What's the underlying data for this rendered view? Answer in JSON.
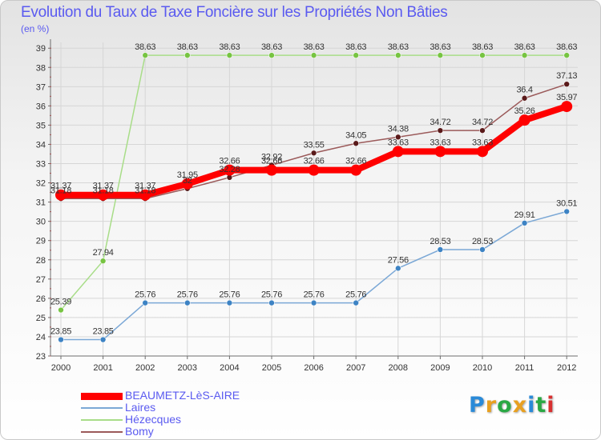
{
  "header": {
    "title": "Evolution du Taux de Taxe Foncière sur les Propriétés Non Bâties",
    "subtitle": "(en %)"
  },
  "logo": {
    "text": "Proxiti",
    "letters": [
      "P",
      "r",
      "o",
      "x",
      "i",
      "t",
      "i"
    ],
    "colors": [
      "#2a8ad8",
      "#e8a020",
      "#2aa844",
      "#e8a020",
      "#2a8ad8",
      "#2aa844",
      "#d83030"
    ]
  },
  "colors": {
    "text": "#5a5af0",
    "grid": "#d6d6d6",
    "axis": "#6e6e6e",
    "tick_mark": "#e04040"
  },
  "chart_data": {
    "type": "line",
    "x": [
      "2000",
      "2001",
      "2002",
      "2003",
      "2004",
      "2005",
      "2006",
      "2007",
      "2008",
      "2009",
      "2010",
      "2011",
      "2012"
    ],
    "yticks": [
      23,
      24,
      25,
      26,
      27,
      28,
      29,
      30,
      31,
      32,
      33,
      34,
      35,
      36,
      37,
      38,
      39
    ],
    "ylim": [
      23,
      39.3
    ],
    "grid": true,
    "legend_position": "bottom-left",
    "series": [
      {
        "name": "BEAUMETZ-LèS-AIRE",
        "color": "#ff0000",
        "dot_color": "#ff0000",
        "width": 8,
        "dot": 7,
        "values": [
          31.37,
          31.37,
          31.37,
          31.95,
          32.66,
          32.66,
          32.66,
          32.66,
          33.63,
          33.63,
          33.63,
          35.26,
          35.97
        ],
        "labels": [
          "31.37",
          "31.37",
          "31.37",
          "31.95",
          "32.66",
          "32.66",
          "32.66",
          "32.66",
          "33.63",
          "33.63",
          "33.63",
          "35.26",
          "35.97"
        ],
        "label_pos": [
          "above",
          "above",
          "above",
          "above",
          "above",
          "above",
          "above",
          "above",
          "above",
          "above",
          "above",
          "above",
          "above"
        ]
      },
      {
        "name": "Laires",
        "color": "#7ba8d6",
        "dot_color": "#3d83c4",
        "width": 1.5,
        "dot": 3.5,
        "values": [
          23.85,
          23.85,
          25.76,
          25.76,
          25.76,
          25.76,
          25.76,
          25.76,
          27.56,
          28.53,
          28.53,
          29.91,
          30.51
        ],
        "labels": [
          "23.85",
          "23.85",
          "25.76",
          "25.76",
          "25.76",
          "25.76",
          "25.76",
          "25.76",
          "27.56",
          "28.53",
          "28.53",
          "29.91",
          "30.51"
        ],
        "label_pos": [
          "above",
          "above",
          "above",
          "above",
          "above",
          "above",
          "above",
          "above",
          "above",
          "above",
          "above",
          "above",
          "above"
        ]
      },
      {
        "name": "Hézecques",
        "color": "#a8dd88",
        "dot_color": "#77c442",
        "width": 1.5,
        "dot": 3.5,
        "values": [
          25.39,
          27.94,
          38.63,
          38.63,
          38.63,
          38.63,
          38.63,
          38.63,
          38.63,
          38.63,
          38.63,
          38.63,
          38.63
        ],
        "labels": [
          "25.39",
          "27.94",
          "38.63",
          "38.63",
          "38.63",
          "38.63",
          "38.63",
          "38.63",
          "38.63",
          "38.63",
          "38.63",
          "38.63",
          "38.63"
        ],
        "label_pos": [
          "above",
          "above",
          "above",
          "above",
          "above",
          "above",
          "above",
          "above",
          "above",
          "above",
          "above",
          "above",
          "above"
        ]
      },
      {
        "name": "Bomy",
        "color": "#9b5a5a",
        "dot_color": "#5a1a1a",
        "width": 1.5,
        "dot": 3.5,
        "values": [
          31.18,
          31.18,
          31.18,
          31.7,
          32.28,
          32.92,
          33.55,
          34.05,
          34.38,
          34.72,
          34.72,
          36.4,
          37.13
        ],
        "labels": [
          "31.18",
          "31.18",
          "31.18",
          "32",
          "32.28",
          "32.92",
          "33.55",
          "34.05",
          "34.38",
          "34.72",
          "34.72",
          "36.4",
          "37.13"
        ],
        "label_pos": [
          "above",
          "above",
          "above",
          "above",
          "above",
          "above",
          "above",
          "above",
          "above",
          "above",
          "above",
          "above",
          "above"
        ]
      }
    ]
  }
}
